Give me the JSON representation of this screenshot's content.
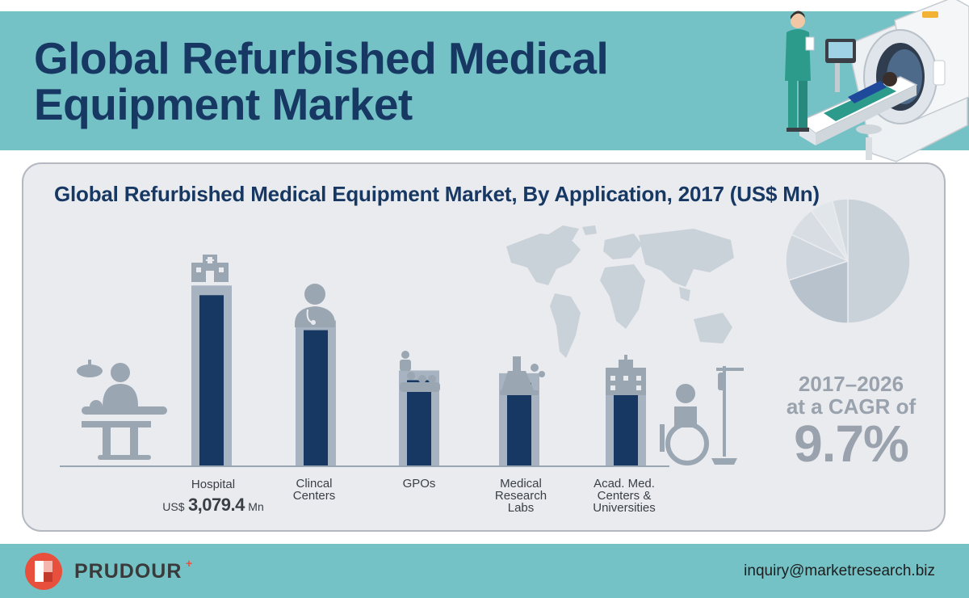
{
  "header": {
    "title_line1": "Global Refurbished Medical",
    "title_line2": "Equipment Market"
  },
  "colors": {
    "teal_band": "#74c2c6",
    "navy": "#173863",
    "bar_outer": "#a7b3c0",
    "panel_bg": "#e9ebef",
    "muted_text": "#9aa3ad",
    "brand_red": "#e8503d"
  },
  "icons": [
    "doctor-with-mri-scanner-icon",
    "world-map-icon",
    "surgeon-operating-table-icon",
    "hospital-building-icon",
    "doctor-stethoscope-icon",
    "group-people-icon",
    "lab-flask-icon",
    "university-building-icon",
    "wheelchair-iv-stand-icon",
    "prudour-logo-icon"
  ],
  "chart_data": {
    "type": "bar",
    "title": "Global Refurbished Medical Equipment Market, By Application, 2017 (US$ Mn)",
    "categories": [
      "Hospital",
      "Clincal Centers",
      "GPOs",
      "Medical Research Labs",
      "Acad. Med. Centers & Universities"
    ],
    "values": [
      3079.4,
      2450,
      1550,
      1500,
      1460
    ],
    "value_labels": [
      {
        "prefix": "US$",
        "value": "3,079.4",
        "suffix": "Mn"
      }
    ],
    "ylim": [
      0,
      3200
    ],
    "grid": false,
    "pie": {
      "type": "pie",
      "values": [
        50,
        20,
        12,
        8,
        6,
        4
      ]
    },
    "cagr": {
      "period": "2017–2026",
      "label": "at a CAGR of",
      "value": "9.7%"
    }
  },
  "footer": {
    "brand": "PRUDOUR",
    "email": "inquiry@marketresearch.biz"
  }
}
